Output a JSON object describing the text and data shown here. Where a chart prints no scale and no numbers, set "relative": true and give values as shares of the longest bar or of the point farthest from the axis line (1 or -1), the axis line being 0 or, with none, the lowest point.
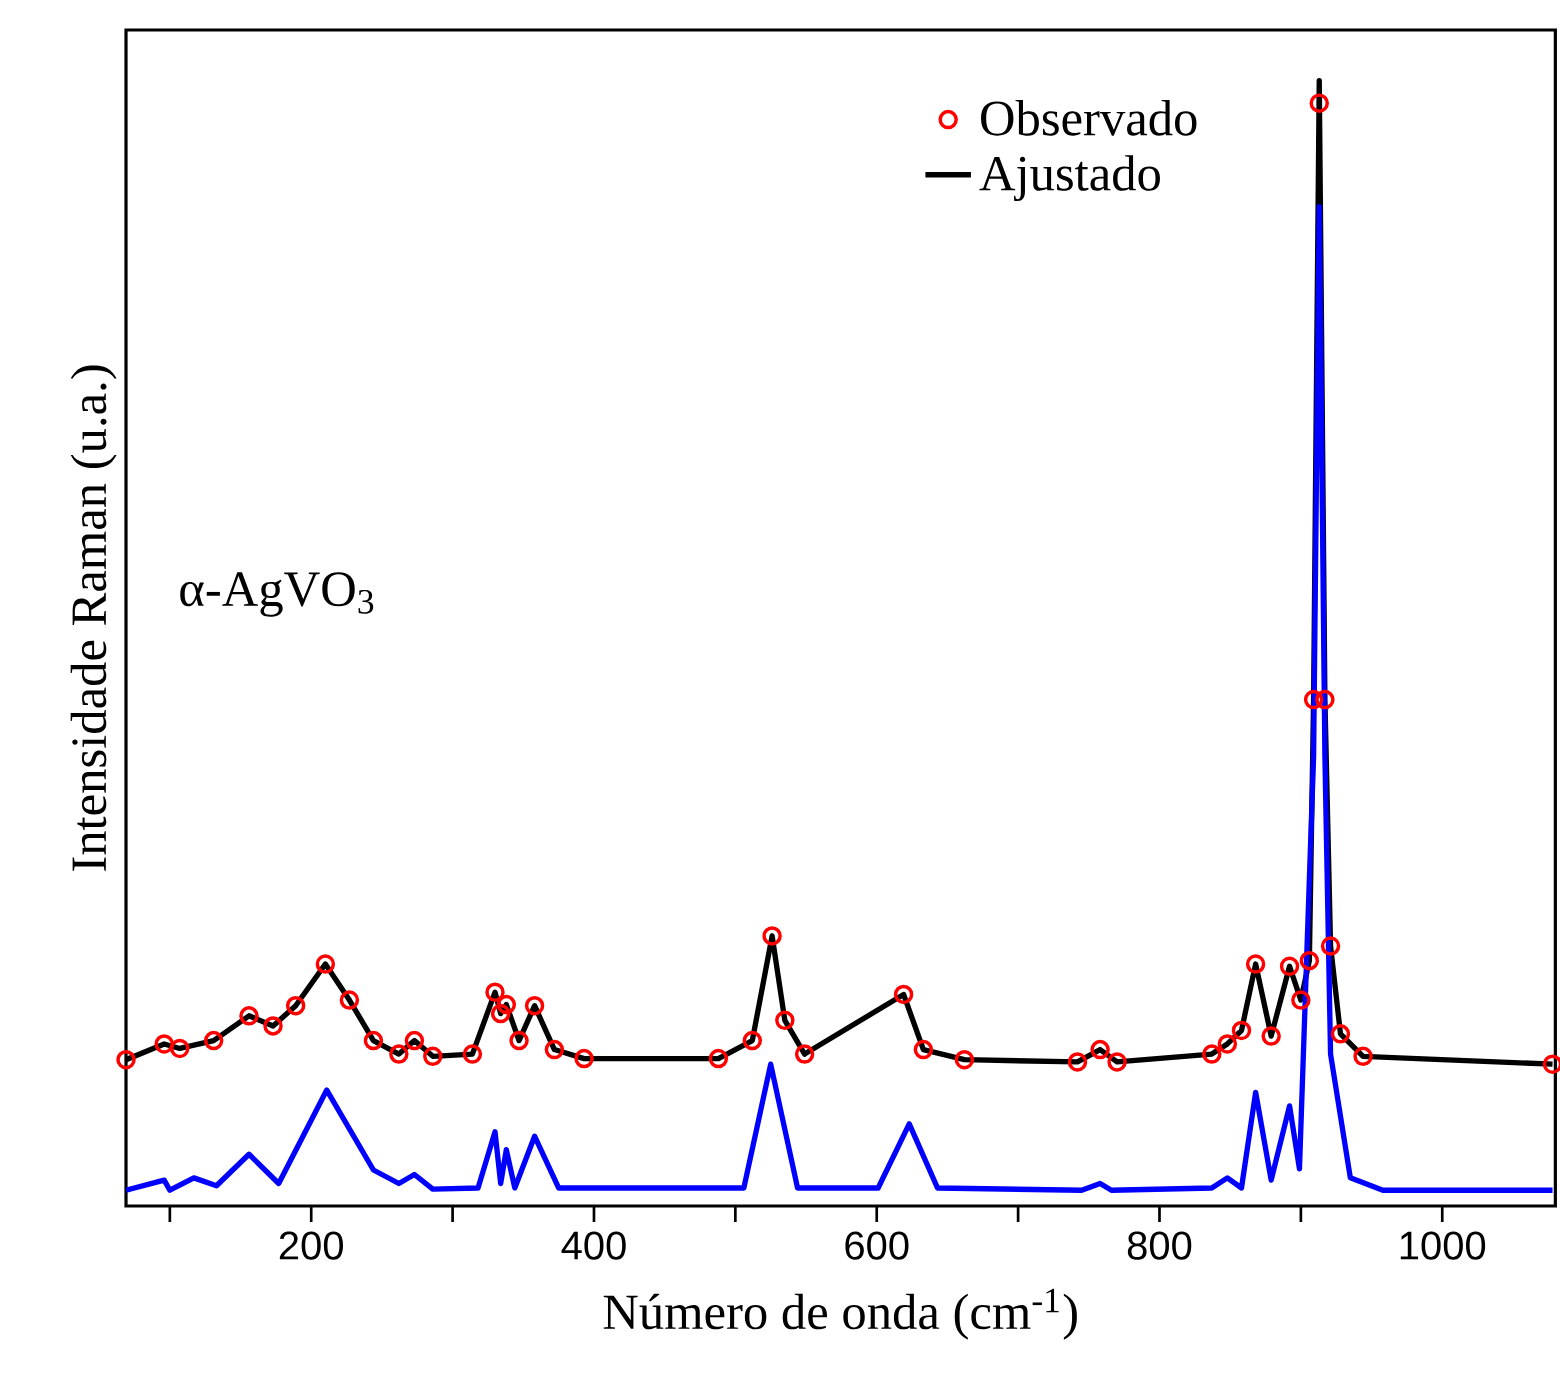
{
  "chart_data": {
    "type": "line",
    "relative": true,
    "xlabel": "Número de onda (cm$^{-1}$)",
    "ylabel": "Intensidade Raman (u.a.)",
    "annotations": [
      "α-AgVO$_{3}$"
    ],
    "xlim": [
      69,
      1080
    ],
    "xticks": [
      {
        "value": 100,
        "label": null
      },
      200,
      {
        "value": 300,
        "label": null
      },
      400,
      {
        "value": 500,
        "label": null
      },
      600,
      {
        "value": 700,
        "label": null
      },
      800,
      {
        "value": 900,
        "label": null
      },
      1000
    ],
    "legend": "top right",
    "grid": false,
    "series": [
      {
        "name": "Observado",
        "type": "scatter",
        "marker": "circle",
        "color": "#ff0000",
        "x": [
          69,
          96,
          107,
          131,
          156,
          173,
          189,
          210,
          227,
          244,
          262,
          273,
          286,
          314,
          330,
          334,
          338,
          347,
          358,
          372,
          393,
          488,
          512,
          526,
          535,
          549,
          619,
          633,
          662,
          742,
          758,
          770,
          837,
          848,
          858,
          868,
          879,
          892,
          900,
          906,
          909,
          913,
          917,
          921,
          928,
          944,
          1078
        ],
        "values": [
          0.13,
          0.144,
          0.14,
          0.147,
          0.169,
          0.16,
          0.178,
          0.215,
          0.183,
          0.147,
          0.135,
          0.147,
          0.133,
          0.135,
          0.19,
          0.171,
          0.179,
          0.147,
          0.178,
          0.139,
          0.131,
          0.131,
          0.147,
          0.24,
          0.165,
          0.135,
          0.188,
          0.139,
          0.13,
          0.128,
          0.139,
          0.128,
          0.135,
          0.144,
          0.156,
          0.215,
          0.151,
          0.213,
          0.183,
          0.218,
          0.45,
          0.98,
          0.45,
          0.231,
          0.153,
          0.133,
          0.126
        ]
      },
      {
        "name": "Ajustado",
        "color": "#000000",
        "x": [
          69,
          96,
          107,
          131,
          156,
          173,
          189,
          210,
          227,
          244,
          262,
          273,
          286,
          314,
          330,
          334,
          338,
          347,
          358,
          372,
          393,
          488,
          512,
          526,
          535,
          549,
          619,
          633,
          662,
          742,
          758,
          770,
          837,
          848,
          858,
          868,
          879,
          892,
          900,
          906,
          909,
          913,
          917,
          921,
          928,
          944,
          1078
        ],
        "values": [
          0.13,
          0.144,
          0.14,
          0.147,
          0.169,
          0.16,
          0.178,
          0.215,
          0.183,
          0.147,
          0.135,
          0.147,
          0.133,
          0.135,
          0.19,
          0.171,
          0.179,
          0.147,
          0.178,
          0.139,
          0.131,
          0.131,
          0.147,
          0.24,
          0.165,
          0.135,
          0.188,
          0.139,
          0.13,
          0.128,
          0.139,
          0.128,
          0.135,
          0.144,
          0.156,
          0.215,
          0.151,
          0.213,
          0.183,
          0.218,
          0.45,
          1.0,
          0.45,
          0.231,
          0.153,
          0.133,
          0.126
        ]
      },
      {
        "color": "#0000ff",
        "x": [
          69,
          96,
          100,
          117,
          133,
          156,
          177,
          211,
          244,
          262,
          273,
          286,
          318,
          330,
          334,
          338,
          344,
          358,
          375,
          506,
          525,
          544,
          601,
          623,
          643,
          745,
          758,
          766,
          837,
          848,
          858,
          868,
          879,
          892,
          899,
          909,
          913,
          917,
          921,
          935,
          958,
          1078
        ],
        "values": [
          0.014,
          0.023,
          0.014,
          0.025,
          0.018,
          0.046,
          0.02,
          0.103,
          0.032,
          0.02,
          0.028,
          0.015,
          0.016,
          0.066,
          0.02,
          0.05,
          0.016,
          0.062,
          0.016,
          0.016,
          0.126,
          0.016,
          0.016,
          0.073,
          0.016,
          0.014,
          0.02,
          0.014,
          0.016,
          0.025,
          0.016,
          0.101,
          0.023,
          0.089,
          0.033,
          0.4,
          0.888,
          0.4,
          0.135,
          0.025,
          0.014,
          0.014
        ]
      }
    ]
  }
}
